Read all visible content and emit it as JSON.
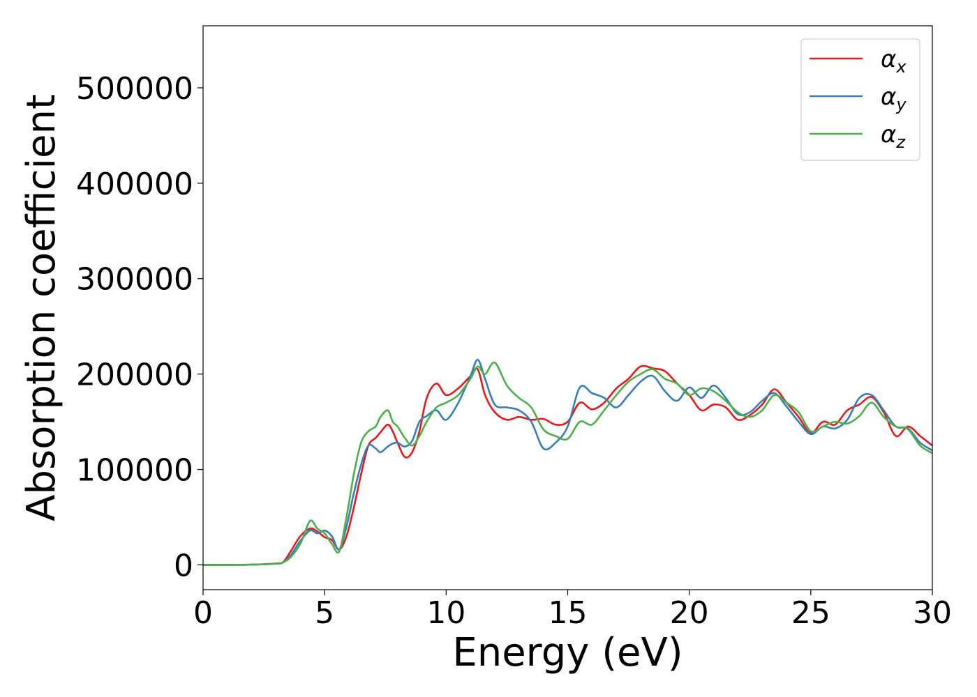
{
  "chart_data": {
    "type": "line",
    "xlabel": "Energy (eV)",
    "ylabel": "Absorption coefficient",
    "xlim": [
      0,
      30
    ],
    "ylim": [
      -26000,
      565000
    ],
    "xticks": [
      0,
      5,
      10,
      15,
      20,
      25,
      30
    ],
    "yticks": [
      0,
      100000,
      200000,
      300000,
      400000,
      500000
    ],
    "grid": false,
    "legend_position": "top-right",
    "series": [
      {
        "name": "αx",
        "symbol": "α",
        "subscript": "x",
        "color": "#e41a1c",
        "x": [
          0,
          1,
          2,
          3,
          3.3,
          3.6,
          4.0,
          4.4,
          4.7,
          5.0,
          5.3,
          5.6,
          5.9,
          6.2,
          6.5,
          6.8,
          7.1,
          7.3,
          7.6,
          7.8,
          8.0,
          8.3,
          8.6,
          8.9,
          9.2,
          9.6,
          10.0,
          10.5,
          11.0,
          11.3,
          11.6,
          12.0,
          12.5,
          13.0,
          13.5,
          14.0,
          14.5,
          15.0,
          15.5,
          16.0,
          16.5,
          17.0,
          17.5,
          18.0,
          18.5,
          19.0,
          19.5,
          20.0,
          20.5,
          21.0,
          21.5,
          22.0,
          22.5,
          23.0,
          23.5,
          24.0,
          24.5,
          25.0,
          25.5,
          26.0,
          26.5,
          27.0,
          27.5,
          28.0,
          28.5,
          29.0,
          29.5,
          30.0
        ],
        "values": [
          0,
          0,
          200,
          1500,
          3000,
          14000,
          30000,
          38000,
          35000,
          29000,
          26000,
          16000,
          30000,
          60000,
          95000,
          125000,
          133000,
          139000,
          147000,
          140000,
          128000,
          113000,
          118000,
          140000,
          175000,
          190000,
          178000,
          185000,
          198000,
          205000,
          178000,
          160000,
          152000,
          155000,
          152000,
          153000,
          147000,
          150000,
          170000,
          163000,
          170000,
          185000,
          195000,
          208000,
          206000,
          203000,
          190000,
          178000,
          162000,
          168000,
          165000,
          152000,
          157000,
          168000,
          184000,
          170000,
          155000,
          138000,
          150000,
          147000,
          162000,
          168000,
          176000,
          160000,
          135000,
          145000,
          135000,
          125000
        ]
      },
      {
        "name": "αy",
        "symbol": "α",
        "subscript": "y",
        "color": "#377eb8",
        "x": [
          0,
          1,
          2,
          3,
          3.3,
          3.6,
          4.0,
          4.4,
          4.7,
          5.0,
          5.3,
          5.6,
          5.9,
          6.2,
          6.5,
          6.8,
          7.1,
          7.3,
          7.6,
          7.8,
          8.0,
          8.3,
          8.6,
          8.9,
          9.2,
          9.6,
          10.0,
          10.5,
          11.0,
          11.3,
          11.6,
          12.0,
          12.5,
          13.0,
          13.5,
          14.0,
          14.5,
          15.0,
          15.5,
          16.0,
          16.5,
          17.0,
          17.5,
          18.0,
          18.5,
          19.0,
          19.5,
          20.0,
          20.5,
          21.0,
          21.5,
          22.0,
          22.5,
          23.0,
          23.5,
          24.0,
          24.5,
          25.0,
          25.5,
          26.0,
          26.5,
          27.0,
          27.5,
          28.0,
          28.5,
          29.0,
          29.5,
          30.0
        ],
        "values": [
          0,
          0,
          200,
          1200,
          2500,
          10000,
          25000,
          36000,
          33000,
          36000,
          30000,
          16000,
          40000,
          75000,
          105000,
          125000,
          122000,
          118000,
          124000,
          127000,
          128000,
          124000,
          130000,
          150000,
          156000,
          162000,
          152000,
          170000,
          198000,
          215000,
          195000,
          168000,
          165000,
          162000,
          150000,
          122000,
          128000,
          145000,
          186000,
          180000,
          175000,
          165000,
          178000,
          192000,
          198000,
          182000,
          172000,
          186000,
          175000,
          188000,
          175000,
          158000,
          160000,
          172000,
          180000,
          166000,
          150000,
          137000,
          145000,
          143000,
          152000,
          175000,
          178000,
          162000,
          145000,
          143000,
          128000,
          120000
        ]
      },
      {
        "name": "αz",
        "symbol": "α",
        "subscript": "z",
        "color": "#4daf4a",
        "x": [
          0,
          1,
          2,
          3,
          3.3,
          3.6,
          4.0,
          4.4,
          4.7,
          5.0,
          5.3,
          5.6,
          5.9,
          6.2,
          6.5,
          6.8,
          7.1,
          7.3,
          7.6,
          7.8,
          8.0,
          8.3,
          8.6,
          8.9,
          9.2,
          9.6,
          10.0,
          10.5,
          11.0,
          11.3,
          11.6,
          12.0,
          12.5,
          13.0,
          13.5,
          14.0,
          14.5,
          15.0,
          15.5,
          16.0,
          16.5,
          17.0,
          17.5,
          18.0,
          18.5,
          19.0,
          19.5,
          20.0,
          20.5,
          21.0,
          21.5,
          22.0,
          22.5,
          23.0,
          23.5,
          24.0,
          24.5,
          25.0,
          25.5,
          26.0,
          26.5,
          27.0,
          27.5,
          28.0,
          28.5,
          29.0,
          29.5,
          30.0
        ],
        "values": [
          0,
          0,
          200,
          1300,
          2800,
          8000,
          22000,
          46000,
          38000,
          33000,
          22000,
          14000,
          50000,
          95000,
          128000,
          140000,
          145000,
          155000,
          162000,
          150000,
          145000,
          133000,
          125000,
          135000,
          150000,
          165000,
          170000,
          178000,
          195000,
          208000,
          200000,
          212000,
          188000,
          175000,
          165000,
          142000,
          135000,
          132000,
          150000,
          147000,
          162000,
          178000,
          192000,
          200000,
          205000,
          195000,
          190000,
          178000,
          185000,
          182000,
          172000,
          160000,
          155000,
          162000,
          178000,
          170000,
          160000,
          140000,
          145000,
          150000,
          148000,
          156000,
          170000,
          155000,
          145000,
          142000,
          125000,
          117000
        ]
      }
    ]
  }
}
